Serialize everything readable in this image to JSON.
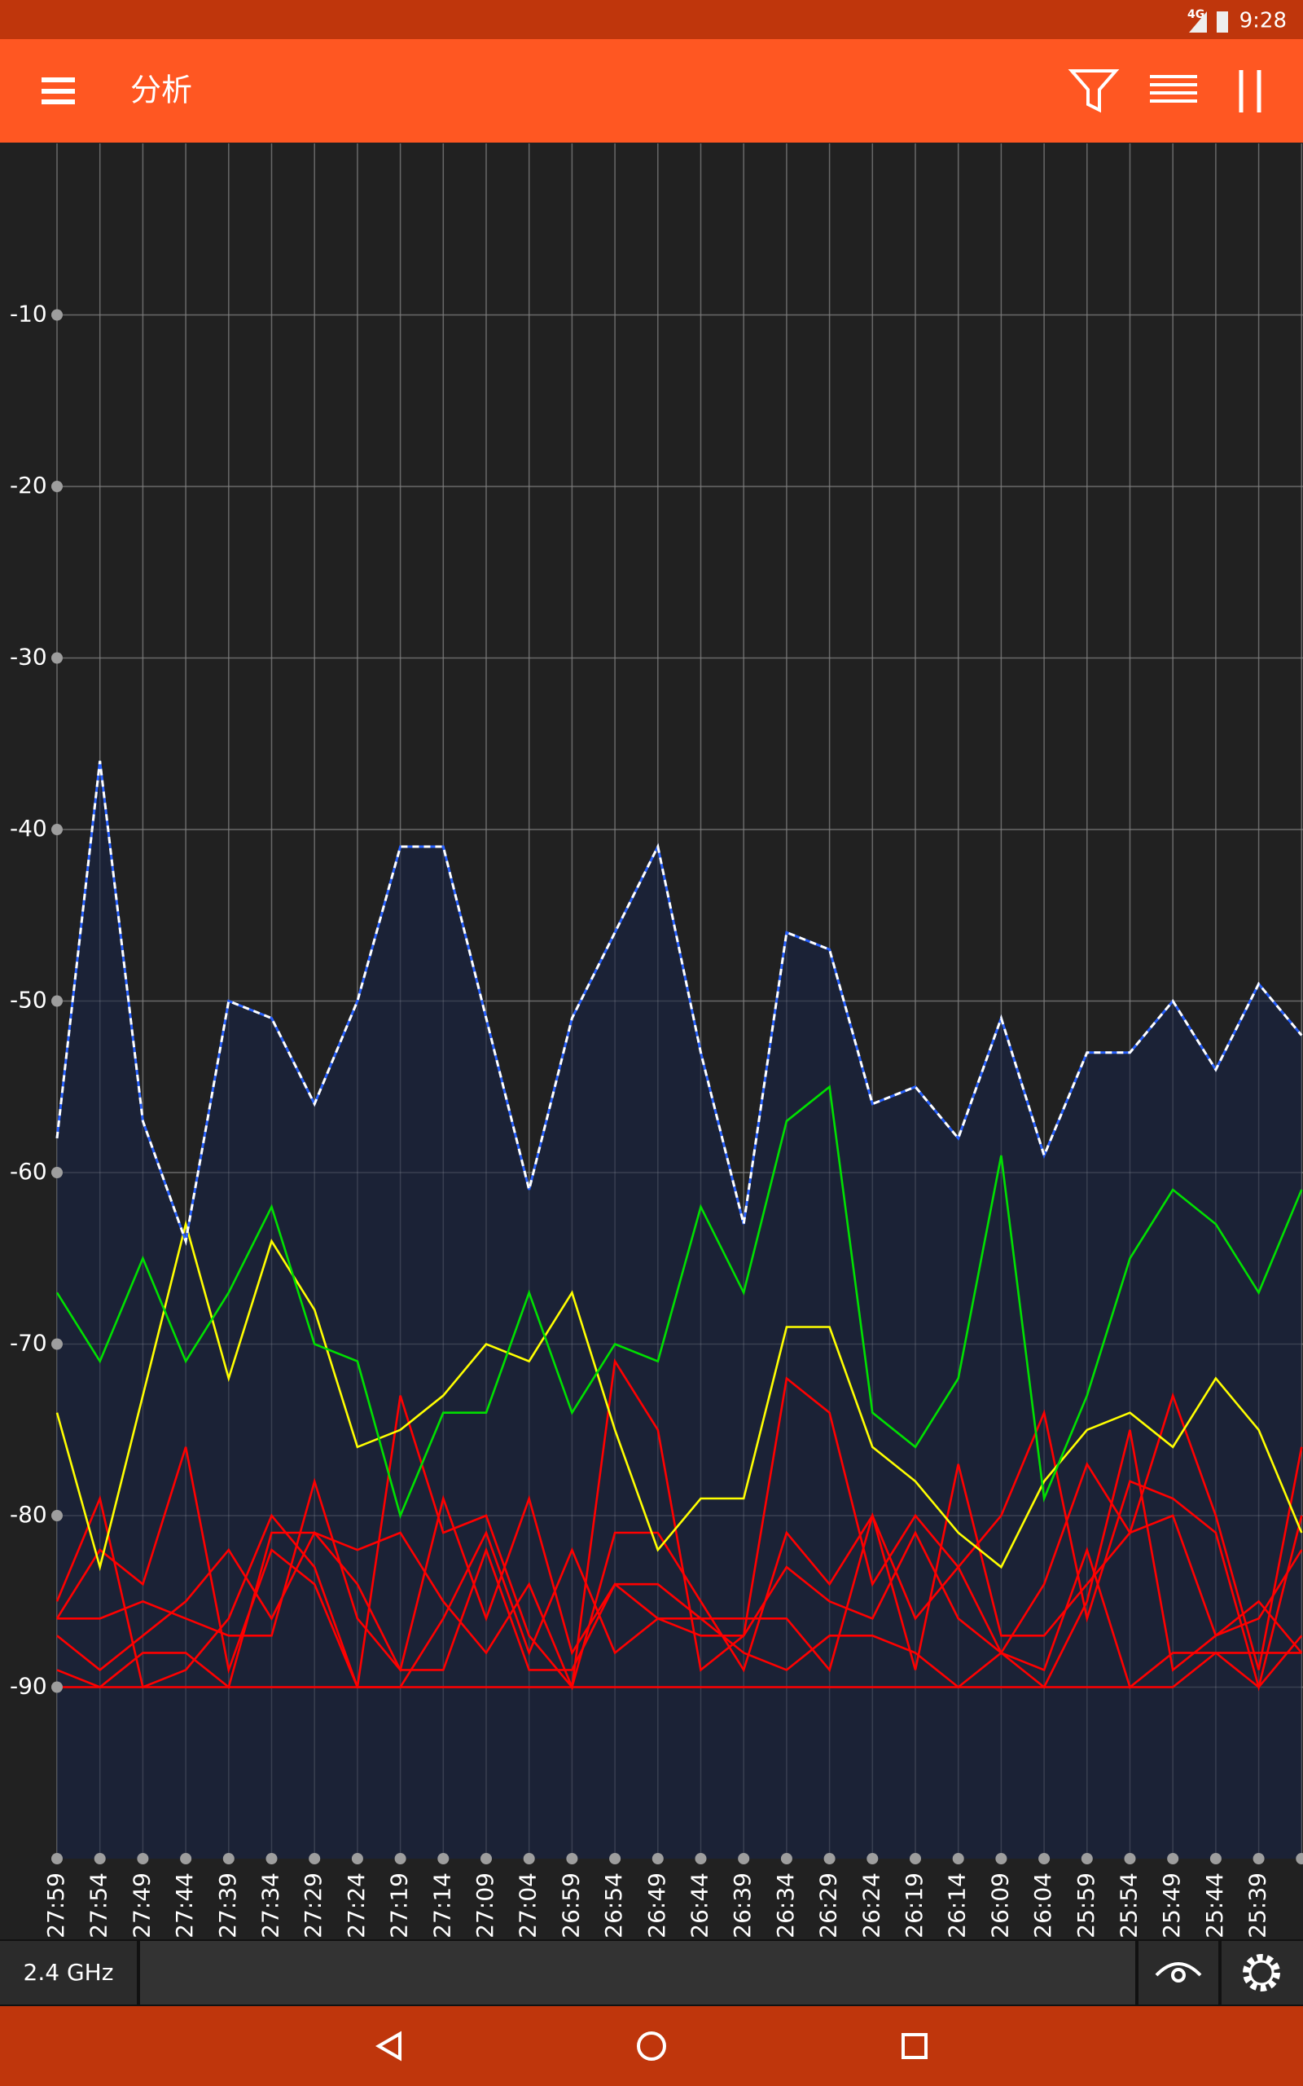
{
  "status_bar": {
    "network": "4G",
    "time": "9:28"
  },
  "app_bar": {
    "title": "分析"
  },
  "chart_data": {
    "type": "line",
    "categories": [
      "27:59",
      "27:54",
      "27:49",
      "27:44",
      "27:39",
      "27:34",
      "27:29",
      "27:24",
      "27:19",
      "27:14",
      "27:09",
      "27:04",
      "26:59",
      "26:54",
      "26:49",
      "26:44",
      "26:39",
      "26:34",
      "26:29",
      "26:24",
      "26:19",
      "26:14",
      "26:09",
      "26:04",
      "25:59",
      "25:54",
      "25:49",
      "25:44",
      "25:39",
      null
    ],
    "ylim": [
      -100,
      0
    ],
    "yticks": [
      -90,
      -80,
      -70,
      -60,
      -50,
      -40,
      -30,
      -20,
      -10
    ],
    "grid": true,
    "series": [
      {
        "color": "#ffffff",
        "dash": true,
        "fill": true,
        "values": [
          -58,
          -36,
          -57,
          -64,
          -50,
          -51,
          -56,
          -50,
          -41,
          -41,
          -51,
          -61,
          -51,
          -46,
          -41,
          -53,
          -63,
          -46,
          -47,
          -56,
          -55,
          -58,
          -51,
          -59,
          -53,
          -53,
          -50,
          -54,
          -49,
          -52
        ]
      },
      {
        "color": "#00e000",
        "values": [
          -67,
          -71,
          -65,
          -71,
          -67,
          -62,
          -70,
          -71,
          -80,
          -74,
          -74,
          -67,
          -74,
          -70,
          -71,
          -62,
          -67,
          -57,
          -55,
          -74,
          -76,
          -72,
          -59,
          -79,
          -73,
          -65,
          -61,
          -63,
          -67,
          -61
        ]
      },
      {
        "color": "#ffff00",
        "values": [
          -74,
          -83,
          -73,
          -63,
          -72,
          -64,
          -68,
          -76,
          -75,
          -73,
          -70,
          -71,
          -67,
          -75,
          -82,
          -79,
          -79,
          -69,
          -69,
          -76,
          -78,
          -81,
          -83,
          -78,
          -75,
          -74,
          -76,
          -72,
          -75,
          -81
        ]
      },
      {
        "color": "#ff0000",
        "values": [
          -85,
          -79,
          -90,
          -89,
          -86,
          -80,
          -83,
          -90,
          -73,
          -81,
          -80,
          -87,
          -90,
          -71,
          -75,
          -89,
          -87,
          -72,
          -74,
          -84,
          -80,
          -83,
          -88,
          -84,
          -77,
          -81,
          -73,
          -80,
          -89,
          -76
        ]
      },
      {
        "color": "#ff0000",
        "values": [
          -86,
          -86,
          -85,
          -86,
          -87,
          -87,
          -78,
          -86,
          -89,
          -79,
          -86,
          -79,
          -88,
          -84,
          -84,
          -86,
          -86,
          -86,
          -89,
          -80,
          -86,
          -83,
          -80,
          -74,
          -86,
          -78,
          -79,
          -81,
          -90,
          -80
        ]
      },
      {
        "color": "#ff0000",
        "values": [
          -89,
          -90,
          -88,
          -88,
          -90,
          -81,
          -81,
          -82,
          -81,
          -85,
          -88,
          -84,
          -90,
          -81,
          -81,
          -85,
          -89,
          -81,
          -84,
          -80,
          -89,
          -77,
          -87,
          -87,
          -84,
          -81,
          -80,
          -87,
          -85,
          -88
        ]
      },
      {
        "color": "#ff0000",
        "values": [
          -90,
          -90,
          -90,
          -90,
          -90,
          -90,
          -90,
          -90,
          -90,
          -90,
          -90,
          -90,
          -90,
          -90,
          -90,
          -90,
          -90,
          -90,
          -90,
          -90,
          -90,
          -90,
          -90,
          -90,
          -90,
          -90,
          -90,
          -88,
          -88,
          -88
        ]
      },
      {
        "color": "#ff0000",
        "values": [
          -86,
          -82,
          -84,
          -76,
          -89,
          -82,
          -84,
          -90,
          -90,
          -86,
          -81,
          -88,
          -82,
          -88,
          -86,
          -87,
          -87,
          -83,
          -85,
          -86,
          -81,
          -86,
          -88,
          -89,
          -82,
          -90,
          -88,
          -88,
          -90,
          -87
        ]
      },
      {
        "color": "#ff0000",
        "values": [
          -87,
          -89,
          -87,
          -85,
          -82,
          -86,
          -81,
          -84,
          -89,
          -89,
          -82,
          -89,
          -89,
          -84,
          -86,
          -86,
          -88,
          -89,
          -87,
          -87,
          -88,
          -90,
          -88,
          -90,
          -85,
          -75,
          -89,
          -87,
          -86,
          -82
        ]
      }
    ]
  },
  "bottom_bar": {
    "band": "2.4 GHz"
  }
}
